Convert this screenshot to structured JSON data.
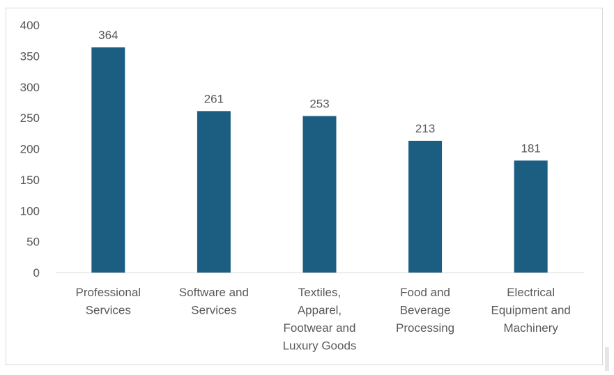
{
  "chart_data": {
    "type": "bar",
    "categories": [
      [
        "Professional",
        "Services"
      ],
      [
        "Software and",
        "Services"
      ],
      [
        "Textiles,",
        "Apparel,",
        "Footwear and",
        "Luxury Goods"
      ],
      [
        "Food and",
        "Beverage",
        "Processing"
      ],
      [
        "Electrical",
        "Equipment and",
        "Machinery"
      ]
    ],
    "values": [
      364,
      261,
      253,
      213,
      181
    ],
    "title": "",
    "xlabel": "",
    "ylabel": "",
    "ylim": [
      0,
      400
    ],
    "yticks": [
      0,
      50,
      100,
      150,
      200,
      250,
      300,
      350,
      400
    ],
    "grid": false,
    "data_labels": true,
    "bar_color": "#1B5E82",
    "text_color": "#595959",
    "axis_color": "#d9d9d9"
  }
}
